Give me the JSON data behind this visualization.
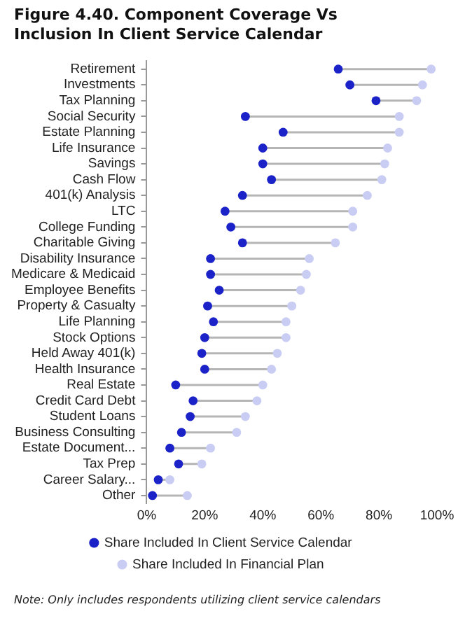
{
  "chart_data": {
    "type": "scatter",
    "orientation": "horizontal",
    "title": "Figure 4.40. Component Coverage Vs Inclusion In Client Service Calendar",
    "categories": [
      "Retirement",
      "Investments",
      "Tax Planning",
      "Social Security",
      "Estate Planning",
      "Life Insurance",
      "Savings",
      "Cash Flow",
      "401(k) Analysis",
      "LTC",
      "College Funding",
      "Charitable Giving",
      "Disability Insurance",
      "Medicare & Medicaid",
      "Employee Benefits",
      "Property & Casualty",
      "Life Planning",
      "Stock Options",
      "Held Away 401(k)",
      "Health Insurance",
      "Real Estate",
      "Credit Card Debt",
      "Student Loans",
      "Business Consulting",
      "Estate Document...",
      "Tax Prep",
      "Career Salary...",
      "Other"
    ],
    "series": [
      {
        "name": "Share Included In Client Service Calendar",
        "color": "#1a22c8",
        "values": [
          66,
          70,
          79,
          34,
          47,
          40,
          40,
          43,
          33,
          27,
          29,
          33,
          22,
          22,
          25,
          21,
          23,
          20,
          19,
          20,
          10,
          16,
          15,
          12,
          8,
          11,
          4,
          2
        ]
      },
      {
        "name": "Share Included In Financial Plan",
        "color": "#c9cdf4",
        "values": [
          98,
          95,
          93,
          87,
          87,
          83,
          82,
          81,
          76,
          71,
          71,
          65,
          56,
          55,
          53,
          50,
          48,
          48,
          45,
          43,
          40,
          38,
          34,
          31,
          22,
          19,
          8,
          14
        ]
      }
    ],
    "xlim": [
      0,
      100
    ],
    "xticks": [
      {
        "value": 0,
        "label": "0%"
      },
      {
        "value": 20,
        "label": "20%"
      },
      {
        "value": 40,
        "label": "40%"
      },
      {
        "value": 60,
        "label": "60%"
      },
      {
        "value": 80,
        "label": "80%"
      },
      {
        "value": 100,
        "label": "100%"
      }
    ],
    "grid": false,
    "legend": "bottom",
    "marker": "circle",
    "annotations": [
      "Note: Only includes respondents utilizing client service calendars"
    ]
  }
}
